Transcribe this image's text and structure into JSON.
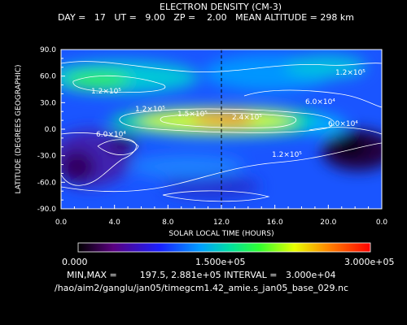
{
  "chart_data": {
    "type": "heatmap",
    "title": "ELECTRON DENSITY (CM-3)",
    "subtitle": "DAY =   17   UT =   9.00   ZP =    2.00   MEAN ALTITUDE = 298 km",
    "xlabel": "SOLAR LOCAL TIME (HOURS)",
    "ylabel": "LATITUDE (DEGREES GEOGRAPHIC)",
    "xlim": [
      0,
      24
    ],
    "ylim": [
      -90,
      90
    ],
    "x_ticks": [
      "0.0",
      "4.0",
      "8.0",
      "12.0",
      "16.0",
      "20.0",
      "0.0"
    ],
    "y_ticks": [
      "90.0",
      "60.0",
      "30.0",
      "0.0",
      "-30.0",
      "-60.0",
      "-90.0"
    ],
    "contour_labels": [
      "1.2×10⁵",
      "1.2×10⁵",
      "6.0×10⁴",
      "1.2×10⁵",
      "1.5×10⁵",
      "2.4×10⁵",
      "6.0×10⁴",
      "1.2×10⁵",
      "6.0×10⁴"
    ],
    "colorbar": {
      "min_label": "0.000",
      "mid_label": "1.500e+05",
      "max_label": "3.000e+05",
      "range": [
        0,
        300000
      ]
    },
    "minmax_text": "MIN,MAX =        197.5, 2.881e+05 INTERVAL =   3.000e+04",
    "min": 197.5,
    "max": 288100,
    "interval": 30000,
    "marker_x": 12.0,
    "source_path": "/hao/aim2/ganglu/jan05/timegcm1.42_amie.s_jan05_base_029.nc",
    "grid": false
  }
}
